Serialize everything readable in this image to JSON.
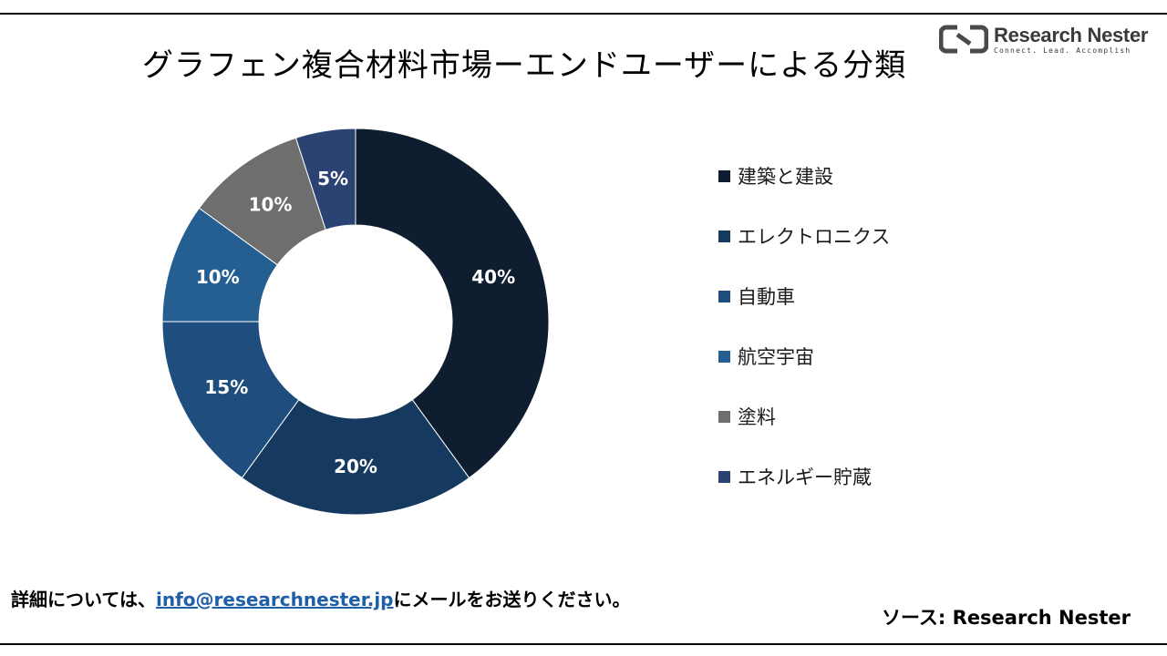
{
  "title": "グラフェン複合材料市場ーエンドユーザーによる分類",
  "logo": {
    "name": "Research Nester",
    "tagline": "Connect. Lead. Accomplish"
  },
  "chart_data": {
    "type": "pie",
    "donut": true,
    "categories": [
      "建築と建設",
      "エレクトロニクス",
      "自動車",
      "航空宇宙",
      "塗料",
      "エネルギー貯蔵"
    ],
    "values": [
      40,
      20,
      15,
      10,
      10,
      5
    ],
    "value_labels": [
      "40%",
      "20%",
      "15%",
      "10%",
      "10%",
      "5%"
    ],
    "colors": [
      "#0e1e30",
      "#163a5f",
      "#1f4e7e",
      "#255f91",
      "#6e6e6e",
      "#2a4373"
    ],
    "start_angle_deg": 0,
    "direction": "clockwise",
    "legend_position": "right"
  },
  "footer": {
    "contact_prefix": "詳細については、",
    "contact_email": "info@researchnester.jp",
    "contact_suffix": "にメールをお送りください。",
    "source": "ソース: Research Nester"
  }
}
